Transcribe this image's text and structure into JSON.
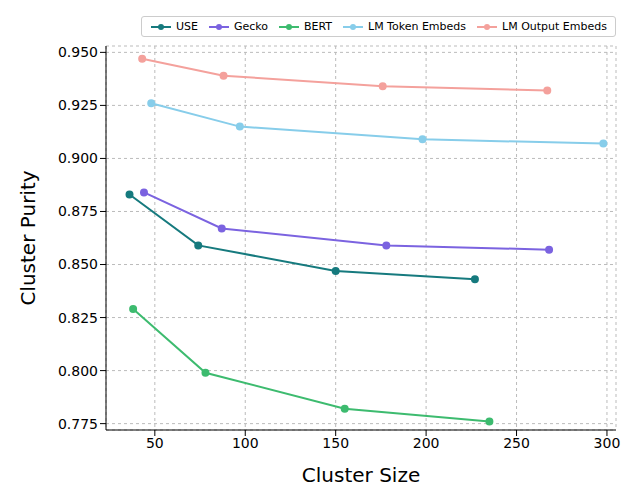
{
  "chart_data": {
    "type": "line",
    "x_label": "Cluster Size",
    "y_label": "Cluster Purity",
    "xlim": [
      23,
      305
    ],
    "xticks": [
      50,
      100,
      150,
      200,
      250,
      300
    ],
    "ylim": [
      0.772,
      0.953
    ],
    "yticks": [
      0.775,
      {
        "value": 0.8,
        "label": "0.800"
      },
      0.825,
      {
        "value": 0.85,
        "label": "0.850"
      },
      0.875,
      {
        "value": 0.9,
        "label": "0.900"
      },
      0.925,
      {
        "value": 0.95,
        "label": "0.950"
      }
    ],
    "grid": true,
    "legend": "top",
    "marker": "circle",
    "line_style": "solid",
    "series": [
      {
        "name": "USE",
        "color": "#167a7e",
        "x": [
          36,
          74,
          150,
          227
        ],
        "values": [
          0.883,
          0.859,
          0.847,
          0.843
        ]
      },
      {
        "name": "Gecko",
        "color": "#7b63e0",
        "x": [
          44,
          87,
          178,
          268
        ],
        "values": [
          0.884,
          0.867,
          0.859,
          0.857
        ]
      },
      {
        "name": "BERT",
        "color": "#3dbb6f",
        "x": [
          38,
          78,
          155,
          235
        ],
        "values": [
          0.829,
          0.799,
          0.782,
          0.776
        ]
      },
      {
        "name": "LM Token Embeds",
        "color": "#87cdea",
        "x": [
          48,
          97,
          198,
          298
        ],
        "values": [
          0.926,
          0.915,
          0.909,
          0.907
        ]
      },
      {
        "name": "LM Output Embeds",
        "color": "#f4a19c",
        "x": [
          43,
          88,
          176,
          267
        ],
        "values": [
          0.947,
          0.939,
          0.934,
          0.932
        ]
      }
    ]
  }
}
